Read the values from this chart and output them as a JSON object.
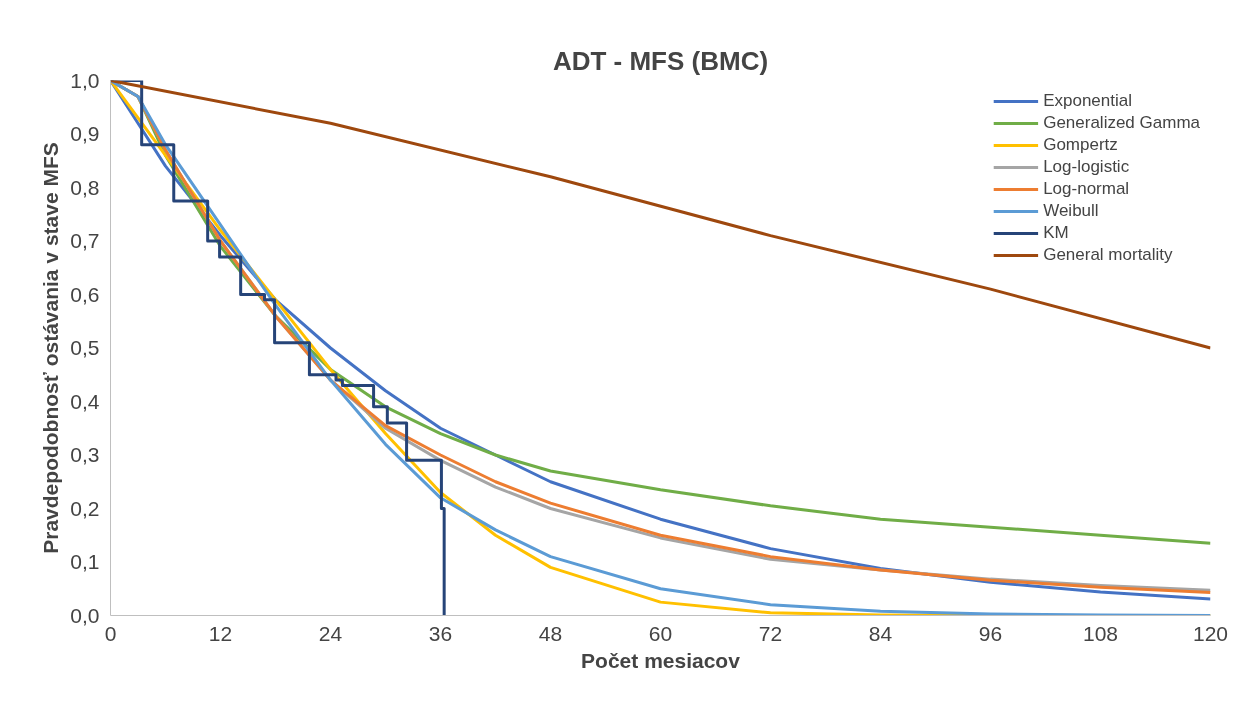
{
  "chart_data": {
    "type": "line",
    "title": "ADT - MFS (BMC)",
    "xlabel": "Počet mesiacov",
    "ylabel": "Pravdepodobnosť ostávania v stave MFS",
    "x": [
      0,
      3,
      6,
      12,
      18,
      24,
      30,
      36,
      42,
      48,
      60,
      72,
      84,
      96,
      108,
      120
    ],
    "series": [
      {
        "name": "Exponential",
        "color": "#4472c4",
        "values": [
          1,
          0.92,
          0.84,
          0.71,
          0.59,
          0.5,
          0.42,
          0.35,
          0.3,
          0.25,
          0.18,
          0.125,
          0.088,
          0.062,
          0.044,
          0.031
        ]
      },
      {
        "name": "Generalized Gamma",
        "color": "#70ad47",
        "values": [
          1,
          0.97,
          0.86,
          0.69,
          0.56,
          0.46,
          0.39,
          0.34,
          0.3,
          0.27,
          0.235,
          0.205,
          0.18,
          0.165,
          0.15,
          0.135
        ]
      },
      {
        "name": "Gompertz",
        "color": "#ffc000",
        "values": [
          1,
          0.93,
          0.86,
          0.72,
          0.59,
          0.46,
          0.34,
          0.23,
          0.15,
          0.09,
          0.025,
          0.005,
          0.001,
          0,
          0,
          0
        ]
      },
      {
        "name": "Log-logistic",
        "color": "#a5a5a5",
        "values": [
          1,
          0.97,
          0.87,
          0.7,
          0.56,
          0.44,
          0.35,
          0.29,
          0.24,
          0.2,
          0.145,
          0.105,
          0.085,
          0.068,
          0.056,
          0.047
        ]
      },
      {
        "name": "Log-normal",
        "color": "#ed7d31",
        "values": [
          1,
          0.97,
          0.87,
          0.7,
          0.56,
          0.44,
          0.355,
          0.3,
          0.25,
          0.21,
          0.15,
          0.11,
          0.085,
          0.066,
          0.053,
          0.043
        ]
      },
      {
        "name": "Weibull",
        "color": "#5b9bd5",
        "values": [
          1,
          0.97,
          0.88,
          0.73,
          0.58,
          0.44,
          0.32,
          0.22,
          0.16,
          0.11,
          0.05,
          0.02,
          0.008,
          0.003,
          0.001,
          0
        ]
      },
      {
        "name": "KM",
        "color": "#264478",
        "type": "step",
        "x": [
          0,
          3.4,
          6.9,
          10.6,
          11.9,
          14.2,
          16.8,
          17.9,
          21.7,
          24.6,
          25.3,
          28.7,
          30.2,
          32.3,
          36.1,
          36.4
        ],
        "values": [
          1,
          0.88,
          0.775,
          0.7,
          0.67,
          0.6,
          0.59,
          0.51,
          0.45,
          0.44,
          0.43,
          0.39,
          0.36,
          0.29,
          0.2,
          0
        ]
      },
      {
        "name": "General mortality",
        "color": "#9e480e",
        "x": [
          0,
          24,
          48,
          72,
          96,
          120
        ],
        "values": [
          1,
          0.92,
          0.82,
          0.71,
          0.61,
          0.5
        ]
      }
    ],
    "xlim": [
      0,
      120
    ],
    "xticks": [
      0,
      12,
      24,
      36,
      48,
      60,
      72,
      84,
      96,
      108,
      120
    ],
    "ylim": [
      0,
      1
    ],
    "yticks": [
      {
        "value": 0,
        "label": "0,0"
      },
      {
        "value": 0.1,
        "label": "0,1"
      },
      {
        "value": 0.2,
        "label": "0,2"
      },
      {
        "value": 0.3,
        "label": "0,3"
      },
      {
        "value": 0.4,
        "label": "0,4"
      },
      {
        "value": 0.5,
        "label": "0,5"
      },
      {
        "value": 0.6,
        "label": "0,6"
      },
      {
        "value": 0.7,
        "label": "0,7"
      },
      {
        "value": 0.8,
        "label": "0,8"
      },
      {
        "value": 0.9,
        "label": "0,9"
      },
      {
        "value": 1,
        "label": "1,0"
      }
    ],
    "grid": false,
    "legend": "top right",
    "line_style": "solid"
  }
}
